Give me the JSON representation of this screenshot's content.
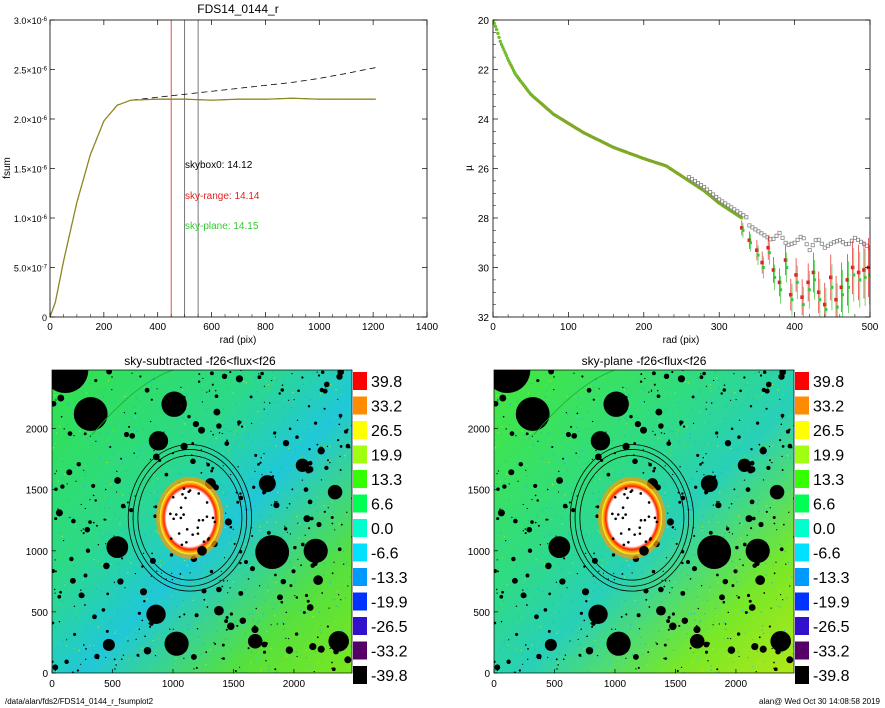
{
  "footer": {
    "path": "/data/alan/fds2/FDS14_0144_r_fsumplot2",
    "stamp": "alan@  Wed Oct 30 14:08:58 2019"
  },
  "colors": {
    "black_curve": "#000000",
    "range": "#e32020",
    "plane": "#34c934",
    "model": "#9a8a20",
    "skybox_marker": "#7a7a7a"
  },
  "chart_data": [
    {
      "id": "growth-curve",
      "type": "line",
      "title": "FDS14_0144_r",
      "xlabel": "rad (pix)",
      "ylabel": "fsum",
      "xlim": [
        0,
        1400
      ],
      "ylim": [
        0,
        3e-06
      ],
      "x_ticks": [
        0,
        200,
        400,
        600,
        800,
        1000,
        1200,
        1400
      ],
      "y_ticks": [
        {
          "v": 0,
          "m": "0",
          "e": ""
        },
        {
          "v": 5e-07,
          "m": "5.0×10",
          "e": "-7"
        },
        {
          "v": 1e-06,
          "m": "1.0×10",
          "e": "-6"
        },
        {
          "v": 1.5e-06,
          "m": "1.5×10",
          "e": "-6"
        },
        {
          "v": 2e-06,
          "m": "2.0×10",
          "e": "-6"
        },
        {
          "v": 2.5e-06,
          "m": "2.5×10",
          "e": "-6"
        },
        {
          "v": 3e-06,
          "m": "3.0×10",
          "e": "-6"
        }
      ],
      "vlines": [
        {
          "x": 450,
          "color": "#e32020"
        },
        {
          "x": 500,
          "color": "#555555"
        },
        {
          "x": 550,
          "color": "#555555"
        }
      ],
      "series": [
        {
          "style": "dashed",
          "color": "#000000",
          "x": [
            0,
            20,
            50,
            100,
            150,
            200,
            250,
            300,
            400,
            500,
            600,
            700,
            800,
            900,
            1000,
            1100,
            1210
          ],
          "y": [
            0,
            1.5e-07,
            5.6e-07,
            1.16e-06,
            1.64e-06,
            1.98e-06,
            2.14e-06,
            2.19e-06,
            2.22e-06,
            2.25e-06,
            2.28e-06,
            2.31e-06,
            2.34e-06,
            2.37e-06,
            2.41e-06,
            2.46e-06,
            2.52e-06
          ]
        },
        {
          "style": "solid",
          "color": "#9a8a20",
          "x": [
            0,
            20,
            50,
            100,
            150,
            200,
            250,
            300,
            400,
            500,
            600,
            700,
            800,
            900,
            1000,
            1100,
            1210
          ],
          "y": [
            0,
            1.5e-07,
            5.6e-07,
            1.16e-06,
            1.64e-06,
            1.98e-06,
            2.14e-06,
            2.19e-06,
            2.2e-06,
            2.2e-06,
            2.19e-06,
            2.2e-06,
            2.2e-06,
            2.21e-06,
            2.2e-06,
            2.2e-06,
            2.2e-06
          ]
        }
      ],
      "annotations": [
        {
          "text": "skybox0: 14.12",
          "color": "#000000",
          "x": 490,
          "y": 1.47e-06
        },
        {
          "text": "sky-range: 14.14",
          "color": "#e32020",
          "x": 490,
          "y": 1.17e-06
        },
        {
          "text": "sky-plane: 14.15",
          "color": "#34c934",
          "x": 490,
          "y": 8.7e-07
        }
      ]
    },
    {
      "id": "sb-profile",
      "type": "scatter",
      "title": "",
      "xlabel": "rad (pix)",
      "ylabel": "µ",
      "xlim": [
        0,
        500
      ],
      "ylim": [
        32,
        20
      ],
      "x_ticks": [
        0,
        100,
        200,
        300,
        400,
        500
      ],
      "y_ticks": [
        20,
        22,
        24,
        26,
        28,
        30,
        32
      ],
      "profile_knots": {
        "r": [
          0,
          5,
          10,
          20,
          30,
          50,
          80,
          120,
          160,
          200,
          230,
          260,
          280,
          300,
          320,
          340
        ],
        "mu": [
          20.0,
          20.4,
          20.9,
          21.6,
          22.2,
          23.0,
          23.8,
          24.55,
          25.15,
          25.6,
          25.9,
          26.5,
          26.9,
          27.4,
          27.8,
          28.2
        ]
      },
      "skybox_tail": {
        "r": [
          340,
          350,
          360,
          370,
          380,
          390,
          400,
          410,
          420,
          430,
          440,
          450,
          460,
          470,
          480,
          490,
          500
        ],
        "mu": [
          28.3,
          28.5,
          28.7,
          28.9,
          28.6,
          29.1,
          29.0,
          28.7,
          29.3,
          28.8,
          29.2,
          29.0,
          28.9,
          29.1,
          28.8,
          29.0,
          29.2
        ]
      },
      "range_tail": {
        "r": [
          330,
          340,
          350,
          357,
          365,
          372,
          380,
          388,
          395,
          402,
          410,
          418,
          425,
          432,
          440,
          448,
          455,
          462,
          470,
          477,
          485,
          492,
          498
        ],
        "mu": [
          28.4,
          28.9,
          29.3,
          29.8,
          29.2,
          30.1,
          30.6,
          29.7,
          31.1,
          30.3,
          31.2,
          30.6,
          30.2,
          31.0,
          31.5,
          30.4,
          31.3,
          30.8,
          30.5,
          30.0,
          30.2,
          30.1,
          30.0
        ]
      },
      "plane_tail": {
        "r": [
          330,
          340,
          350,
          357,
          365,
          372,
          380,
          388,
          395,
          402,
          410,
          418,
          425,
          432,
          440,
          448,
          455,
          462,
          470,
          477,
          485,
          492,
          498
        ],
        "mu": [
          28.5,
          29.0,
          29.5,
          30.0,
          29.4,
          30.4,
          30.9,
          30.0,
          31.3,
          30.6,
          31.5,
          30.9,
          30.5,
          31.3,
          31.7,
          30.8,
          31.6,
          31.1,
          30.8,
          30.3,
          30.5,
          30.4,
          30.3
        ]
      }
    },
    {
      "id": "img-sky-subtracted",
      "type": "heatmap",
      "title": "sky-subtracted -f26<flux<f26",
      "x_ticks": [
        0,
        500,
        1000,
        1500,
        2000
      ],
      "y_ticks": [
        0,
        500,
        1000,
        1500,
        2000
      ],
      "extent": [
        0,
        2480,
        0,
        2480
      ],
      "colorbar": [
        "39.8",
        "33.2",
        "26.5",
        "19.9",
        "13.3",
        "6.6",
        "0.0",
        "-6.6",
        "-13.3",
        "-19.9",
        "-26.5",
        "-33.2",
        "-39.8"
      ],
      "colorbar_colors": [
        "#ff0000",
        "#ff8c00",
        "#ffff00",
        "#a0ff10",
        "#33ff00",
        "#00ff55",
        "#00ffcc",
        "#00e0ff",
        "#0099ff",
        "#0033ff",
        "#3311cc",
        "#550066",
        "#000000"
      ],
      "galaxy": {
        "x": 1140,
        "y": 1270,
        "rx": 250,
        "ry": 300
      },
      "ellipses": [
        {
          "rx": 430,
          "ry": 510
        },
        {
          "rx": 470,
          "ry": 560
        },
        {
          "rx": 510,
          "ry": 600
        }
      ]
    },
    {
      "id": "img-sky-plane",
      "type": "heatmap",
      "title": "sky-plane -f26<flux<f26",
      "x_ticks": [
        0,
        500,
        1000,
        1500,
        2000
      ],
      "y_ticks": [
        0,
        500,
        1000,
        1500,
        2000
      ],
      "extent": [
        0,
        2480,
        0,
        2480
      ],
      "colorbar": [
        "39.8",
        "33.2",
        "26.5",
        "19.9",
        "13.3",
        "6.6",
        "0.0",
        "-6.6",
        "-13.3",
        "-19.9",
        "-26.5",
        "-33.2",
        "-39.8"
      ],
      "colorbar_colors": [
        "#ff0000",
        "#ff8c00",
        "#ffff00",
        "#a0ff10",
        "#33ff00",
        "#00ff55",
        "#00ffcc",
        "#00e0ff",
        "#0099ff",
        "#0033ff",
        "#3311cc",
        "#550066",
        "#000000"
      ],
      "galaxy": {
        "x": 1140,
        "y": 1270,
        "rx": 250,
        "ry": 300
      },
      "ellipses": [
        {
          "rx": 430,
          "ry": 510
        },
        {
          "rx": 470,
          "ry": 560
        },
        {
          "rx": 510,
          "ry": 600
        }
      ]
    }
  ]
}
